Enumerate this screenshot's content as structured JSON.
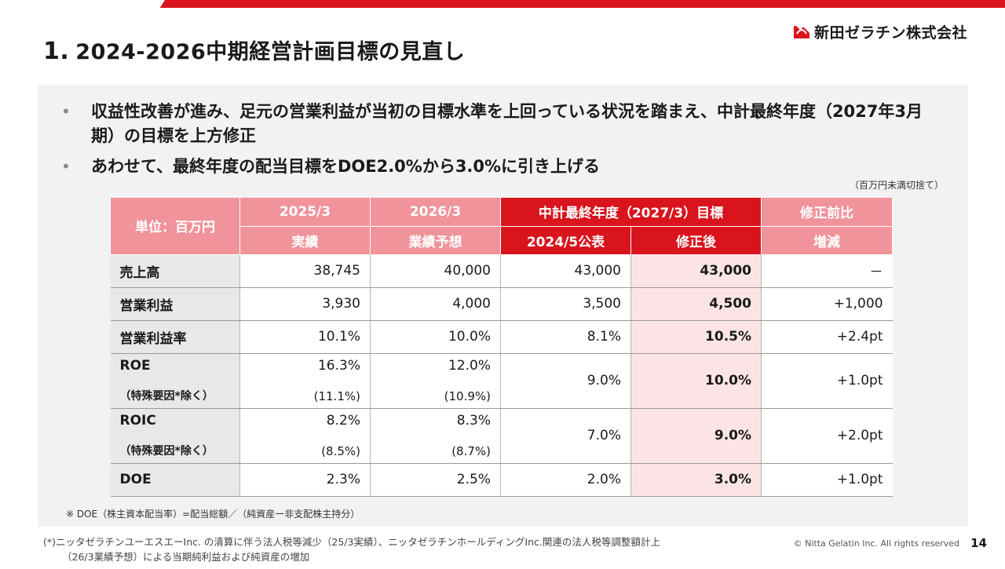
{
  "header": {
    "title_num": "1.",
    "title": "2024-2026中期経営計画目標の見直し",
    "logo_text": "新田ゼラチン株式会社",
    "brand_color": "#d9141c"
  },
  "bullets": [
    "収益性改善が進み、足元の営業利益が当初の目標水準を上回っている状況を踏まえ、中計最終年度（2027年3月期）の目標を上方修正",
    "あわせて、最終年度の配当目標をDOE2.0%から3.0%に引き上げる"
  ],
  "unit_note": "（百万円未満切捨て）",
  "table": {
    "unit_header": "単位：百万円",
    "col_2025_year": "2025/3",
    "col_2025_sub": "実績",
    "col_2026_year": "2026/3",
    "col_2026_sub": "業績予想",
    "target_group": "中計最終年度（2027/3）目標",
    "target_original": "2024/5公表",
    "target_revised": "修正後",
    "change_top": "修正前比",
    "change_bottom": "増減",
    "rows": [
      {
        "label": "売上高",
        "v2025": "38,745",
        "v2026": "40,000",
        "orig": "43,000",
        "rev": "43,000",
        "chg": "－"
      },
      {
        "label": "営業利益",
        "v2025": "3,930",
        "v2026": "4,000",
        "orig": "3,500",
        "rev": "4,500",
        "chg": "+1,000"
      },
      {
        "label": "営業利益率",
        "v2025": "10.1%",
        "v2026": "10.0%",
        "orig": "8.1%",
        "rev": "10.5%",
        "chg": "+2.4pt"
      },
      {
        "label": "ROE",
        "label_sub": "（特殊要因*除く）",
        "v2025": "16.3%",
        "v2025_sub": "(11.1%)",
        "v2026": "12.0%",
        "v2026_sub": "(10.9%)",
        "orig": "9.0%",
        "rev": "10.0%",
        "chg": "+1.0pt"
      },
      {
        "label": "ROIC",
        "label_sub": "（特殊要因*除く）",
        "v2025": "8.2%",
        "v2025_sub": "(8.5%)",
        "v2026": "8.3%",
        "v2026_sub": "(8.7%)",
        "orig": "7.0%",
        "rev": "9.0%",
        "chg": "+2.0pt"
      },
      {
        "label": "DOE",
        "v2025": "2.3%",
        "v2026": "2.5%",
        "orig": "2.0%",
        "rev": "3.0%",
        "chg": "+1.0pt"
      }
    ]
  },
  "doe_note": "※ DOE（株主資本配当率）=配当総額／（純資産ー非支配株主持分）",
  "footnote": {
    "line1": "(*)ニッタゼラチンユーエスエーInc. の清算に伴う法人税等減少（25/3実績）、ニッタゼラチンホールディングInc.関連の法人税等調整額計上",
    "line2": "（26/3業績予想）による当期純利益および純資産の増加"
  },
  "copyright": "© Nitta Gelatin Inc. All rights reserved",
  "page_number": "14"
}
